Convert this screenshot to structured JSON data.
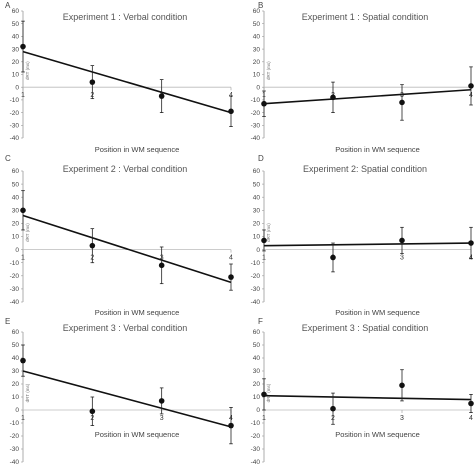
{
  "chart_data": [
    {
      "type": "scatter",
      "panel_letter": "A",
      "title": "Experiment 1 : Verbal condition",
      "xlabel": "Position in WM  sequence",
      "ylabel": "dRT (ms)",
      "ylim": [
        -40,
        60
      ],
      "yticks": [
        60,
        50,
        40,
        30,
        20,
        10,
        0,
        -10,
        -20,
        -30,
        -40
      ],
      "xlim": [
        1,
        4
      ],
      "xticks": [
        "1",
        "2",
        "3",
        "4"
      ],
      "x": [
        1,
        2,
        3,
        4
      ],
      "y": [
        32,
        4,
        -7,
        -19
      ],
      "error": [
        20,
        13,
        13,
        12
      ],
      "trendline": [
        28,
        12,
        -4,
        -20
      ]
    },
    {
      "type": "scatter",
      "panel_letter": "B",
      "title": "Experiment 1 : Spatial condition",
      "xlabel": "Position in WM  sequence",
      "ylabel": "dRT (ms)",
      "ylim": [
        -40,
        60
      ],
      "yticks": [
        60,
        50,
        40,
        30,
        20,
        10,
        0,
        -10,
        -20,
        -30,
        -40
      ],
      "xlim": [
        1,
        4
      ],
      "xticks": [
        "1",
        "2",
        "3",
        "4"
      ],
      "x": [
        1,
        2,
        3,
        4
      ],
      "y": [
        -13,
        -8,
        -12,
        1
      ],
      "error": [
        10,
        12,
        14,
        15
      ],
      "trendline": [
        -13,
        -9,
        -6,
        -2
      ]
    },
    {
      "type": "scatter",
      "panel_letter": "C",
      "title": "Experiment 2 : Verbal condition",
      "xlabel": "Position in WM  sequence",
      "ylabel": "dRT (ms)",
      "ylim": [
        -40,
        60
      ],
      "yticks": [
        60,
        50,
        40,
        30,
        20,
        10,
        0,
        -10,
        -20,
        -30,
        -40
      ],
      "xlim": [
        1,
        4
      ],
      "xticks": [
        "1",
        "2",
        "3",
        "4"
      ],
      "x": [
        1,
        2,
        3,
        4
      ],
      "y": [
        30,
        3,
        -12,
        -21
      ],
      "error": [
        15,
        13,
        14,
        10
      ],
      "trendline": [
        26,
        9,
        -8,
        -25
      ]
    },
    {
      "type": "scatter",
      "panel_letter": "D",
      "title": "Experiment 2:  Spatial condition",
      "xlabel": "Position in WM  sequence",
      "ylabel": "dRT (ms)",
      "ylim": [
        -40,
        60
      ],
      "yticks": [
        60,
        50,
        40,
        30,
        20,
        10,
        0,
        -10,
        -20,
        -30,
        -40
      ],
      "xlim": [
        1,
        4
      ],
      "xticks": [
        "1",
        "2",
        "3",
        "4"
      ],
      "x": [
        1,
        2,
        3,
        4
      ],
      "y": [
        7,
        -6,
        7,
        5
      ],
      "error": [
        8,
        11,
        10,
        12
      ],
      "trendline": [
        3,
        4,
        4,
        5
      ]
    },
    {
      "type": "scatter",
      "panel_letter": "E",
      "title": "Experiment 3 : Verbal condition",
      "xlabel": "Position in WM  sequence",
      "ylabel": "dRT (ms)",
      "ylim": [
        -40,
        60
      ],
      "yticks": [
        60,
        50,
        40,
        30,
        20,
        10,
        0,
        -10,
        -20,
        -30,
        -40
      ],
      "xlim": [
        1,
        4
      ],
      "xticks": [
        "1",
        "2",
        "3",
        "4"
      ],
      "x": [
        1,
        2,
        3,
        4
      ],
      "y": [
        38,
        -1,
        7,
        -12
      ],
      "error": [
        12,
        11,
        10,
        14
      ],
      "trendline": [
        30,
        16,
        1,
        -13
      ]
    },
    {
      "type": "scatter",
      "panel_letter": "F",
      "title": "Experiment 3 : Spatial  condition",
      "xlabel": "Position in WM  sequence",
      "ylabel": "dRT (ms)",
      "ylim": [
        -40,
        60
      ],
      "yticks": [
        60,
        50,
        40,
        30,
        20,
        10,
        0,
        -10,
        -20,
        -30,
        -40
      ],
      "xlim": [
        1,
        4
      ],
      "xticks": [
        "1",
        "2",
        "3",
        "4"
      ],
      "x": [
        1,
        2,
        3,
        4
      ],
      "y": [
        12,
        1,
        19,
        5
      ],
      "error": [
        12,
        12,
        12,
        7
      ],
      "trendline": [
        11,
        10,
        9,
        8
      ]
    }
  ]
}
